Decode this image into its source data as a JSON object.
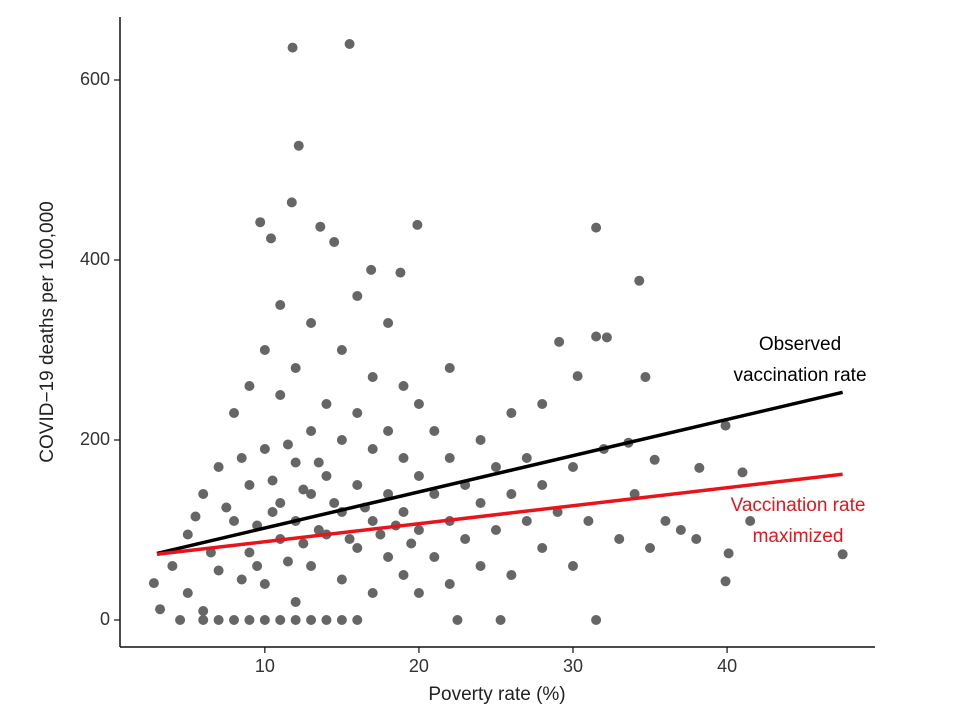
{
  "chart_data": {
    "type": "scatter",
    "x_label": "Poverty rate (%)",
    "y_label": "COVID−19 deaths per 100,000",
    "color": "#666666",
    "xlim": [
      0.6,
      49.6
    ],
    "xticks": [
      10,
      20,
      30,
      40
    ],
    "ylim": [
      -30,
      670
    ],
    "yticks": [
      0,
      200,
      400,
      600
    ],
    "x": [
      11.8,
      15.5,
      12.2,
      11.75,
      9.7,
      10.4,
      13.6,
      19.9,
      31.5,
      34.3,
      14.5,
      16.9,
      18.8,
      31.5,
      32.2,
      29.1,
      30.3,
      34.7,
      39.9,
      41,
      47.5,
      39.9,
      40.1,
      41.5,
      31.5,
      22.5,
      25.3,
      2.8,
      3.2,
      38.2,
      35.3,
      33.6,
      4,
      5,
      5,
      6,
      6,
      7,
      7,
      8,
      8,
      8,
      9,
      9,
      9,
      10,
      10,
      10,
      10,
      11,
      11,
      11,
      11,
      12,
      12,
      12,
      12,
      13,
      13,
      13,
      13,
      14,
      14,
      14,
      14,
      15,
      15,
      15,
      15,
      16,
      16,
      16,
      16,
      17,
      17,
      17,
      17,
      18,
      18,
      18,
      18,
      19,
      19,
      19,
      19,
      20,
      20,
      20,
      20,
      21,
      21,
      21,
      22,
      22,
      22,
      22,
      23,
      23,
      24,
      24,
      24,
      25,
      25,
      26,
      26,
      26,
      27,
      27,
      28,
      28,
      28,
      29,
      30,
      30,
      31,
      32,
      33,
      34,
      35,
      36,
      37,
      38,
      6.5,
      7.5,
      8.5,
      9.5,
      10.5,
      11.5,
      12.5,
      13.5,
      14.5,
      15.5,
      16.5,
      17.5,
      18.5,
      19.5,
      12.5,
      13.5,
      11.5,
      10.5,
      9.5,
      8.5,
      4.5,
      6,
      7,
      9,
      11,
      12,
      13,
      15,
      16,
      5.5
    ],
    "values": [
      636,
      640,
      527,
      464,
      442,
      424,
      437,
      439,
      436,
      377,
      420,
      389,
      386,
      315,
      314,
      309,
      271,
      270,
      216,
      164,
      73,
      43,
      74,
      110,
      0,
      0,
      0,
      41,
      12,
      169,
      178,
      197,
      60,
      30,
      95,
      10,
      140,
      55,
      170,
      0,
      110,
      230,
      75,
      150,
      260,
      0,
      40,
      190,
      300,
      90,
      130,
      250,
      350,
      20,
      110,
      175,
      280,
      60,
      140,
      210,
      330,
      0,
      95,
      160,
      240,
      45,
      120,
      200,
      300,
      80,
      150,
      230,
      360,
      30,
      110,
      190,
      270,
      70,
      140,
      210,
      330,
      50,
      120,
      180,
      260,
      30,
      100,
      160,
      240,
      70,
      140,
      210,
      40,
      110,
      180,
      280,
      90,
      150,
      60,
      130,
      200,
      100,
      170,
      50,
      140,
      230,
      110,
      180,
      80,
      150,
      240,
      120,
      60,
      170,
      110,
      190,
      90,
      140,
      80,
      110,
      100,
      90,
      75,
      125,
      45,
      105,
      155,
      65,
      85,
      100,
      130,
      90,
      125,
      95,
      105,
      85,
      145,
      175,
      195,
      120,
      60,
      180,
      0,
      0,
      0,
      0,
      0,
      0,
      0,
      0,
      0,
      115
    ],
    "lines": [
      {
        "label": [
          "Observed",
          "vaccination rate"
        ],
        "color": "#000000",
        "x": [
          3,
          47.5
        ],
        "values": [
          74,
          253
        ]
      },
      {
        "label": [
          "Vaccination rate",
          "maximized"
        ],
        "color": "#e8141b",
        "x": [
          3,
          47.5
        ],
        "values": [
          73,
          162
        ]
      }
    ]
  }
}
